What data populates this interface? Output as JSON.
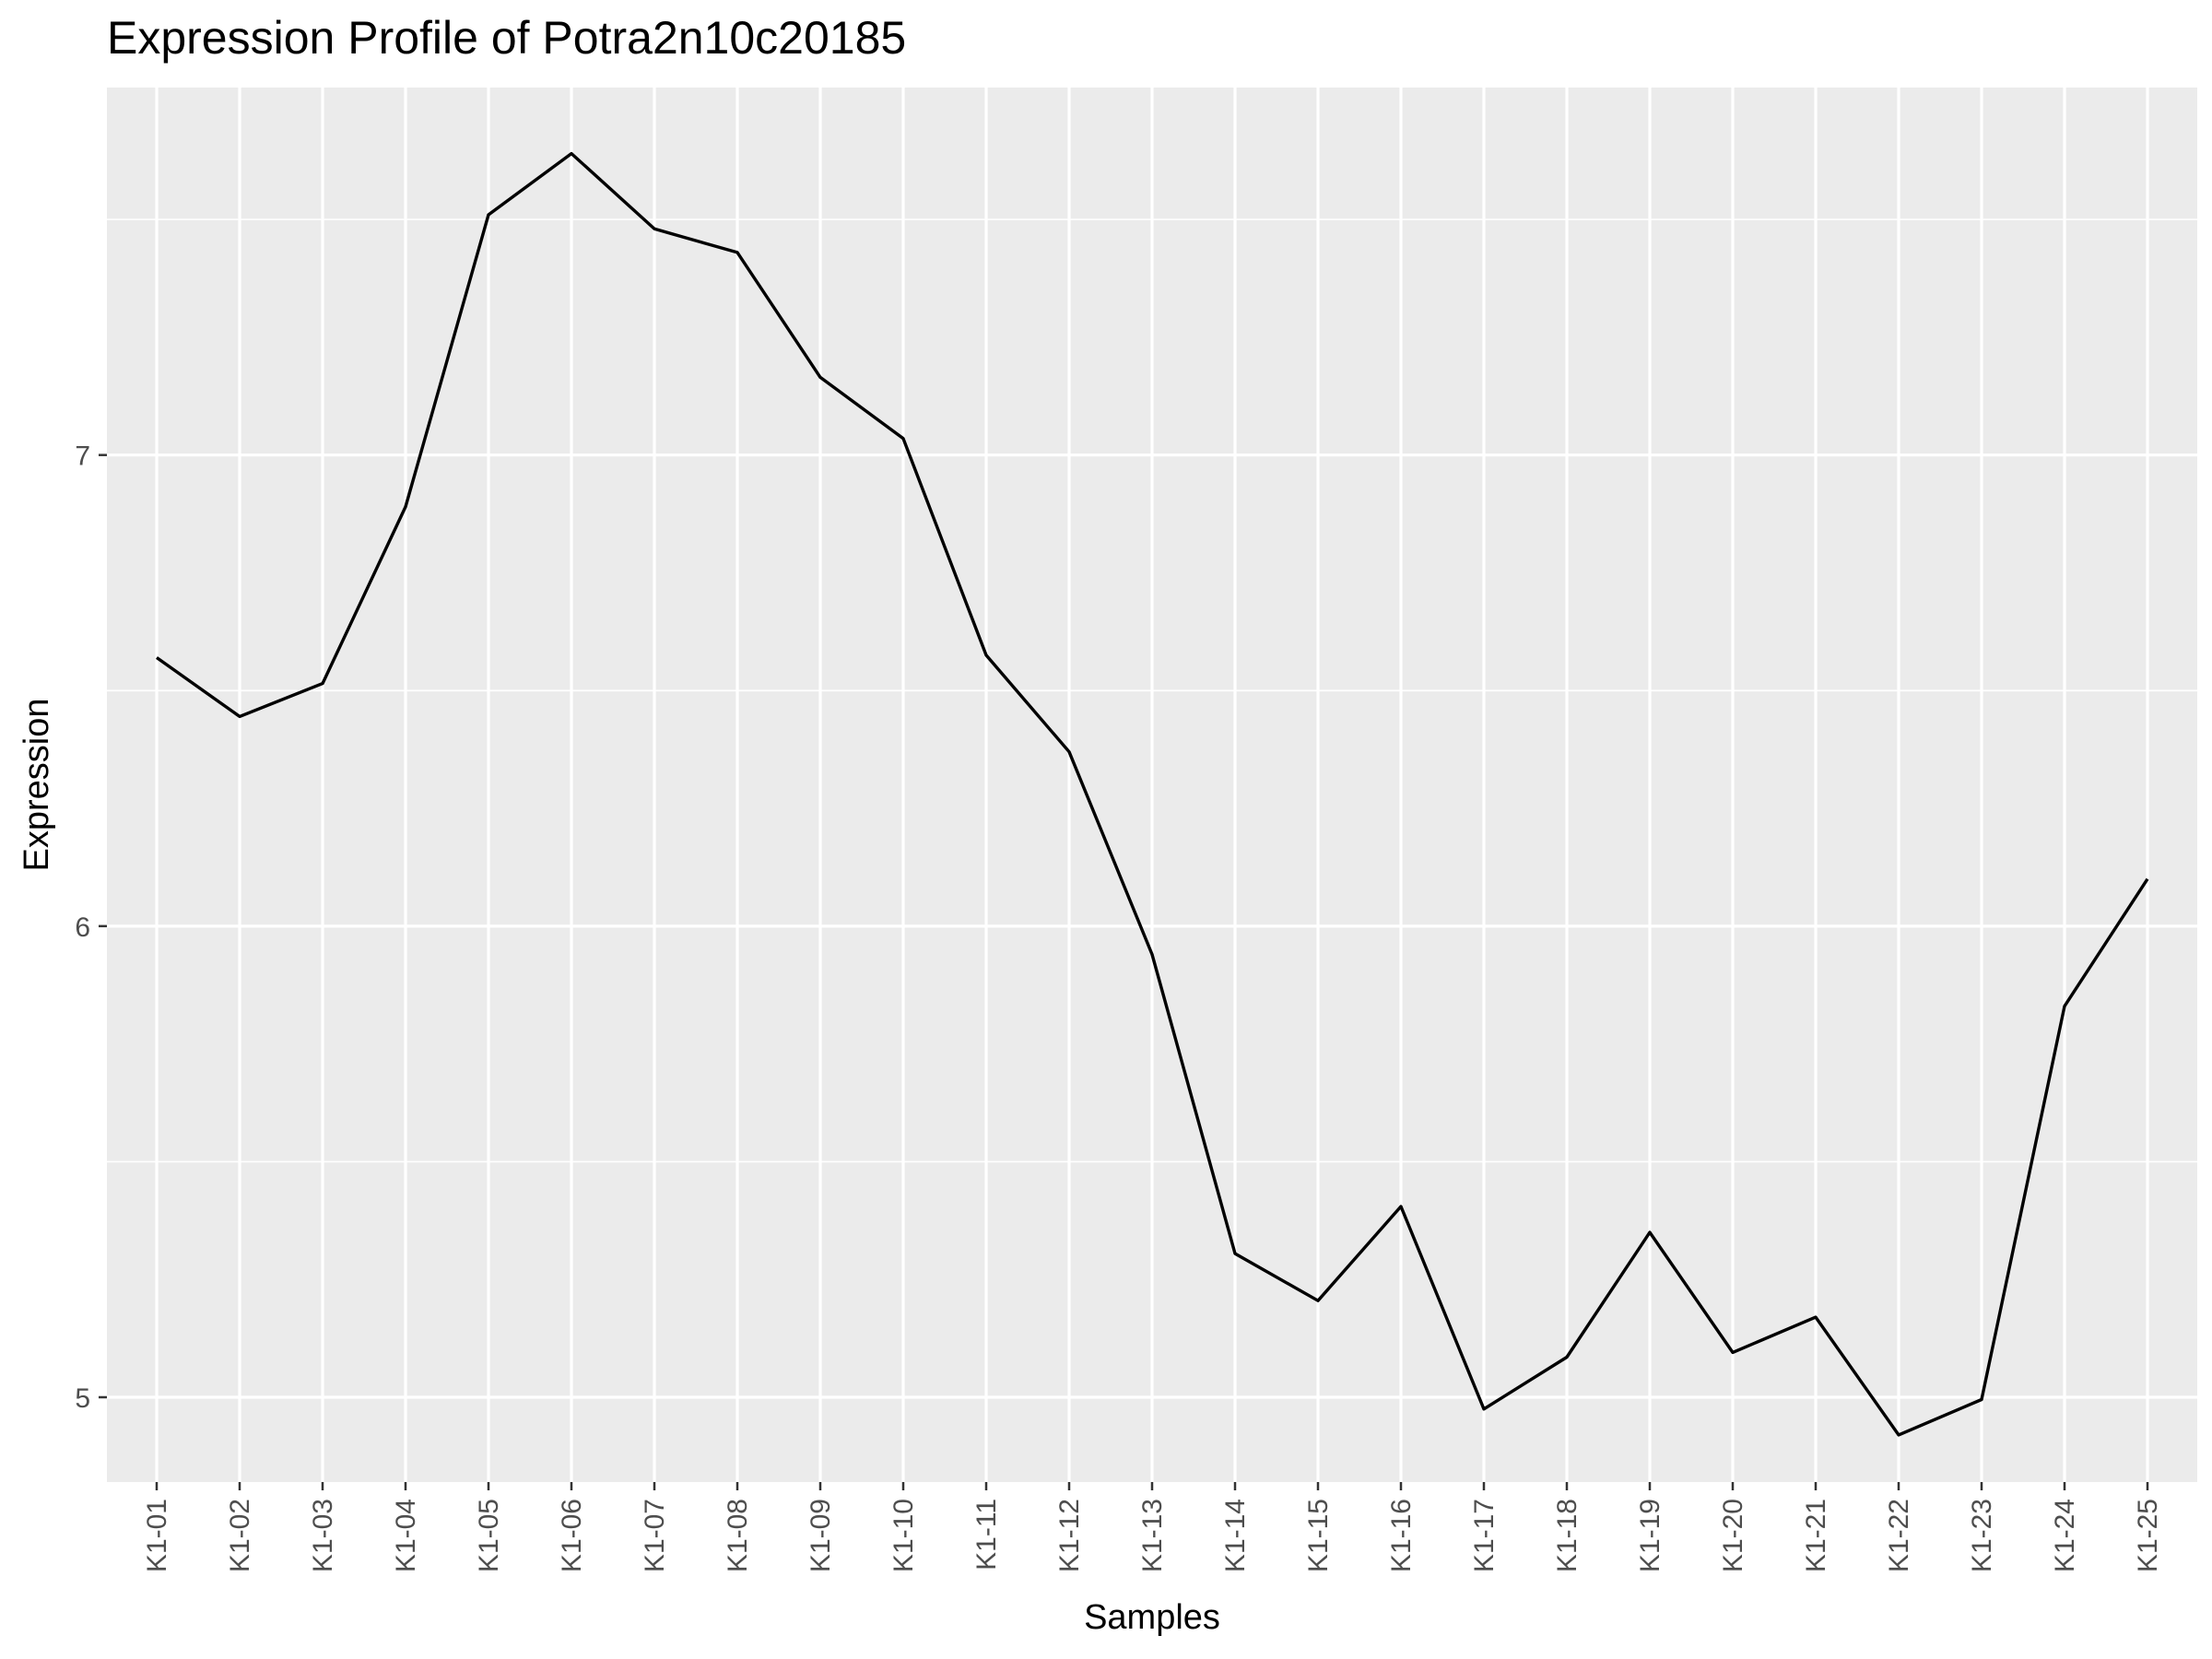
{
  "chart_data": {
    "type": "line",
    "title": "Expression Profile of Potra2n10c20185",
    "xlabel": "Samples",
    "ylabel": "Expression",
    "categories": [
      "K1-01",
      "K1-02",
      "K1-03",
      "K1-04",
      "K1-05",
      "K1-06",
      "K1-07",
      "K1-08",
      "K1-09",
      "K1-10",
      "K1-11",
      "K1-12",
      "K1-13",
      "K1-14",
      "K1-15",
      "K1-16",
      "K1-17",
      "K1-18",
      "K1-19",
      "K1-20",
      "K1-21",
      "K1-22",
      "K1-23",
      "K1-24",
      "K1-25"
    ],
    "series": [
      {
        "values": [
          6.57,
          6.445,
          6.515,
          6.89,
          7.51,
          7.64,
          7.48,
          7.43,
          7.165,
          7.035,
          6.575,
          6.37,
          5.94,
          5.305,
          5.205,
          5.405,
          4.975,
          5.085,
          5.35,
          5.095,
          5.17,
          4.92,
          4.995,
          5.83,
          6.1
        ],
        "color": "#000000"
      }
    ],
    "ylim": [
      4.82,
      7.78
    ],
    "yticks": [
      5,
      6,
      7
    ],
    "ytick_labels": [
      "5",
      "6",
      "7"
    ],
    "grid": true,
    "panel_background": "#ebebeb",
    "grid_color": "#ffffff"
  }
}
